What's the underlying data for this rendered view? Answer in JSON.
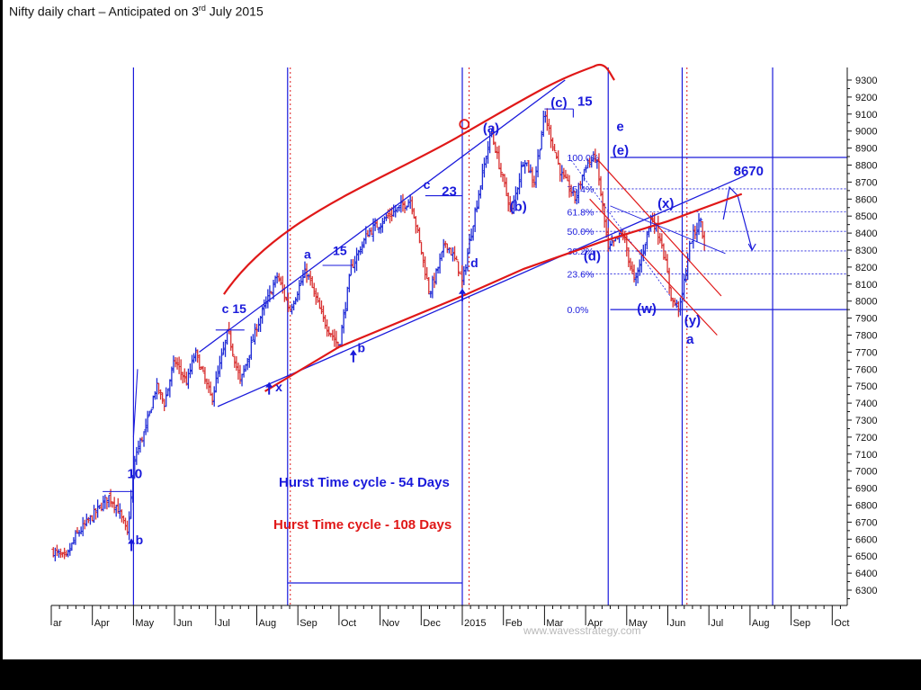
{
  "title": {
    "main": "Nifty daily chart – Anticipated on 3",
    "sup": "rd",
    "rest": " July 2015"
  },
  "colors": {
    "blue": "#1a1adb",
    "red": "#e01818",
    "up_bar": "#1f2bd6",
    "down_bar": "#d83030",
    "axis": "#111111"
  },
  "chart_data": {
    "type": "ohlc",
    "y_axis_side": "right",
    "ylim": [
      6220,
      9380
    ],
    "y_ticks": [
      6300,
      6400,
      6500,
      6600,
      6700,
      6800,
      6900,
      7000,
      7100,
      7200,
      7300,
      7400,
      7500,
      7600,
      7700,
      7800,
      7900,
      8000,
      8100,
      8200,
      8300,
      8400,
      8500,
      8600,
      8700,
      8800,
      8900,
      9000,
      9100,
      9200,
      9300
    ],
    "x_tick_labels": [
      "ar",
      "Apr",
      "May",
      "Jun",
      "Jul",
      "Aug",
      "Sep",
      "Oct",
      "Nov",
      "Dec",
      "2015",
      "Feb",
      "Mar",
      "Apr",
      "May",
      "Jun",
      "Jul",
      "Aug",
      "Sep",
      "Oct"
    ],
    "x_tick_months": [
      0,
      1,
      2,
      3,
      4,
      5,
      6,
      7,
      8,
      9,
      10,
      11,
      12,
      13,
      14,
      15,
      16,
      17,
      18,
      19
    ],
    "price_path": [
      [
        0.05,
        6530
      ],
      [
        0.35,
        6480
      ],
      [
        0.6,
        6620
      ],
      [
        0.95,
        6720
      ],
      [
        1.4,
        6850
      ],
      [
        1.6,
        6790
      ],
      [
        1.85,
        6630
      ],
      [
        2.05,
        7100
      ],
      [
        2.3,
        7250
      ],
      [
        2.55,
        7500
      ],
      [
        2.75,
        7400
      ],
      [
        3.0,
        7650
      ],
      [
        3.3,
        7520
      ],
      [
        3.5,
        7700
      ],
      [
        3.9,
        7420
      ],
      [
        4.3,
        7820
      ],
      [
        4.6,
        7520
      ],
      [
        5.0,
        7850
      ],
      [
        5.5,
        8150
      ],
      [
        5.8,
        7950
      ],
      [
        6.2,
        8180
      ],
      [
        6.6,
        7900
      ],
      [
        7.0,
        7730
      ],
      [
        7.3,
        8200
      ],
      [
        7.7,
        8400
      ],
      [
        8.2,
        8500
      ],
      [
        8.75,
        8600
      ],
      [
        9.2,
        8050
      ],
      [
        9.35,
        8150
      ],
      [
        9.6,
        8350
      ],
      [
        9.9,
        8200
      ],
      [
        10.0,
        8100
      ],
      [
        10.25,
        8450
      ],
      [
        10.7,
        9000
      ],
      [
        11.0,
        8700
      ],
      [
        11.2,
        8520
      ],
      [
        11.5,
        8850
      ],
      [
        11.75,
        8700
      ],
      [
        12.0,
        9100
      ],
      [
        12.4,
        8750
      ],
      [
        12.75,
        8600
      ],
      [
        13.0,
        8800
      ],
      [
        13.25,
        8850
      ],
      [
        13.55,
        8300
      ],
      [
        13.9,
        8400
      ],
      [
        14.2,
        8100
      ],
      [
        14.6,
        8500
      ],
      [
        14.85,
        8350
      ],
      [
        15.1,
        8000
      ],
      [
        15.3,
        7960
      ],
      [
        15.55,
        8350
      ],
      [
        15.8,
        8480
      ],
      [
        15.9,
        8300
      ]
    ],
    "projection_path": [
      [
        16.35,
        8480
      ],
      [
        16.5,
        8670
      ],
      [
        16.7,
        8620
      ],
      [
        17.05,
        8300
      ]
    ],
    "fibonacci": [
      {
        "label": "100.0%",
        "value": 8845
      },
      {
        "label": "75.4%",
        "value": 8660
      },
      {
        "label": "61.8%",
        "value": 8525
      },
      {
        "label": "50.0%",
        "value": 8410
      },
      {
        "label": "38.2%",
        "value": 8295
      },
      {
        "label": "23.6%",
        "value": 8160
      },
      {
        "label": "0.0%",
        "value": 7950
      }
    ],
    "annotations": [
      {
        "text": "10",
        "m": 1.85,
        "v": 6960,
        "size": 15
      },
      {
        "text": "b",
        "m": 2.05,
        "v": 6570,
        "size": 14
      },
      {
        "text": "c 15",
        "m": 4.15,
        "v": 7930,
        "size": 14
      },
      {
        "text": "x",
        "m": 5.45,
        "v": 7470,
        "size": 14
      },
      {
        "text": "a",
        "m": 6.15,
        "v": 8250,
        "size": 14
      },
      {
        "text": "15",
        "m": 6.85,
        "v": 8270,
        "size": 14
      },
      {
        "text": "b",
        "m": 7.45,
        "v": 7700,
        "size": 14
      },
      {
        "text": "c",
        "m": 9.05,
        "v": 8660,
        "size": 14
      },
      {
        "text": "23",
        "m": 9.5,
        "v": 8620,
        "size": 15
      },
      {
        "text": "d",
        "m": 10.2,
        "v": 8200,
        "size": 14
      },
      {
        "text": "(a)",
        "m": 10.5,
        "v": 8990,
        "size": 15
      },
      {
        "text": "(b)",
        "m": 11.15,
        "v": 8530,
        "size": 15
      },
      {
        "text": "(c)",
        "m": 12.15,
        "v": 9140,
        "size": 15
      },
      {
        "text": "15",
        "m": 12.8,
        "v": 9150,
        "size": 15
      },
      {
        "text": "e",
        "m": 13.75,
        "v": 9000,
        "size": 15
      },
      {
        "text": "(e)",
        "m": 13.65,
        "v": 8860,
        "size": 15
      },
      {
        "text": "(d)",
        "m": 12.95,
        "v": 8240,
        "size": 15
      },
      {
        "text": "(x)",
        "m": 14.75,
        "v": 8550,
        "size": 15
      },
      {
        "text": "8670",
        "m": 16.6,
        "v": 8740,
        "size": 15
      },
      {
        "text": "(w)",
        "m": 14.25,
        "v": 7930,
        "size": 15
      },
      {
        "text": "(y)",
        "m": 15.4,
        "v": 7860,
        "size": 15
      },
      {
        "text": "a",
        "m": 15.45,
        "v": 7750,
        "size": 15
      }
    ],
    "cycle_lines": {
      "blue": [
        2,
        5.75,
        10.0,
        13.55,
        15.35,
        17.55
      ],
      "red_dotted": [
        5.75,
        10.1,
        15.4
      ]
    },
    "hurst_legend": {
      "blue_label": "Hurst Time cycle - 54 Days",
      "red_label": "Hurst Time cycle - 108 Days"
    },
    "watermark": "www.wavesstrategy.com"
  }
}
